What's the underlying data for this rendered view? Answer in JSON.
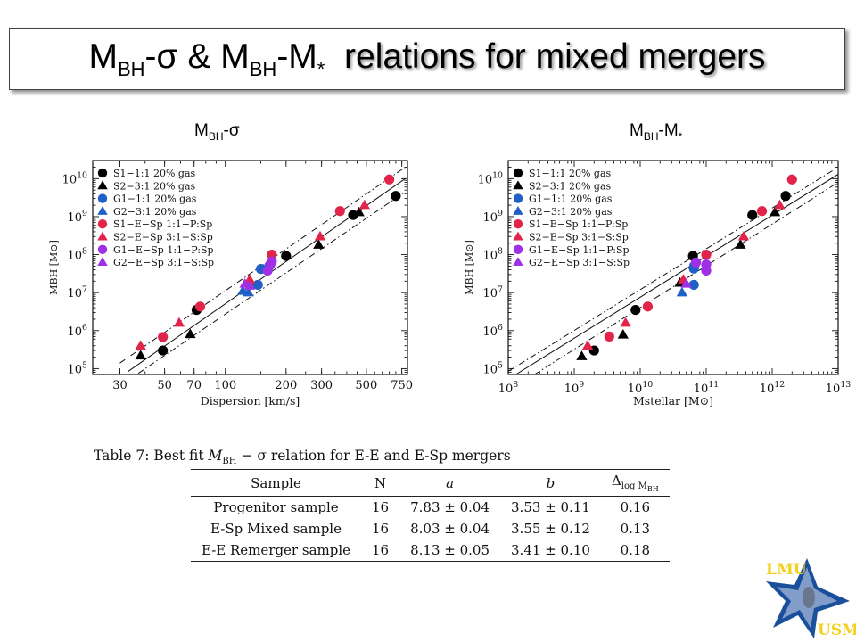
{
  "title": {
    "part1_main": "M",
    "part1_sub": "BH",
    "part2_main": "-σ & M",
    "part2_sub": "BH",
    "part3_main": "-M",
    "part3_sub": "*",
    "part4": "relations for mixed mergers"
  },
  "left_heading": {
    "main": "M",
    "sub": "BH",
    "rest": "-σ"
  },
  "right_heading": {
    "main": "M",
    "sub": "BH",
    "rest": "-M",
    "sub2": "*"
  },
  "legend": [
    {
      "label": "S1−1:1 20% gas",
      "marker": "circle",
      "color": "#000000"
    },
    {
      "label": "S2−3:1 20% gas",
      "marker": "triangle",
      "color": "#000000"
    },
    {
      "label": "G1−1:1 20% gas",
      "marker": "circle",
      "color": "#1f5fc6"
    },
    {
      "label": "G2−3:1 20% gas",
      "marker": "triangle",
      "color": "#1f5fc6"
    },
    {
      "label": "S1−E−Sp 1:1−P:Sp",
      "marker": "circle",
      "color": "#e3244a"
    },
    {
      "label": "S2−E−Sp 3:1−S:Sp",
      "marker": "triangle",
      "color": "#e3244a"
    },
    {
      "label": "G1−E−Sp 1:1−P:Sp",
      "marker": "circle",
      "color": "#a030e6"
    },
    {
      "label": "G2−E−Sp 3:1−S:Sp",
      "marker": "triangle",
      "color": "#a030e6"
    }
  ],
  "chart_data": [
    {
      "type": "scatter",
      "title": "MBH-σ",
      "xlabel": "Dispersion  [km/s]",
      "ylabel": "MBH [M⊙]",
      "xscale": "log",
      "yscale": "log",
      "xlim": [
        22,
        800
      ],
      "ylim": [
        70000,
        30000000000
      ],
      "xticks": [
        30,
        50,
        70,
        100,
        200,
        300,
        500,
        750
      ],
      "xtick_labels": [
        "30",
        "50",
        "70",
        "100",
        "200",
        "300",
        "500",
        "750"
      ],
      "ytick_exponents": [
        5,
        6,
        7,
        8,
        9,
        10
      ],
      "legend_position": "top-left",
      "series": [
        {
          "name": "S1−1:1 20% gas",
          "marker": "circle",
          "color": "#000000",
          "points": [
            [
              49,
              300000
            ],
            [
              72,
              3500000
            ],
            [
              200,
              92000000
            ],
            [
              430,
              1100000000
            ],
            [
              700,
              3500000000
            ]
          ]
        },
        {
          "name": "S2−3:1 20% gas",
          "marker": "triangle",
          "color": "#000000",
          "points": [
            [
              38,
              220000
            ],
            [
              67,
              800000
            ],
            [
              290,
              180000000
            ],
            [
              460,
              1300000000
            ]
          ]
        },
        {
          "name": "G1−1:1 20% gas",
          "marker": "circle",
          "color": "#1f5fc6",
          "points": [
            [
              145,
              16000000
            ],
            [
              150,
              42000000
            ],
            [
              165,
              50000000
            ]
          ]
        },
        {
          "name": "G2−3:1 20% gas",
          "marker": "triangle",
          "color": "#1f5fc6",
          "points": [
            [
              122,
              11000000
            ],
            [
              130,
              10000000
            ]
          ]
        },
        {
          "name": "S1−E−Sp 1:1−P:Sp",
          "marker": "circle",
          "color": "#e3244a",
          "points": [
            [
              49,
              680000
            ],
            [
              75,
              4300000
            ],
            [
              170,
              100000000
            ],
            [
              370,
              1400000000
            ],
            [
              650,
              9500000000
            ]
          ]
        },
        {
          "name": "S2−E−Sp 3:1−S:Sp",
          "marker": "triangle",
          "color": "#e3244a",
          "points": [
            [
              38,
              400000
            ],
            [
              59,
              1600000
            ],
            [
              132,
              22000000
            ],
            [
              295,
              300000000
            ],
            [
              490,
              2000000000
            ]
          ]
        },
        {
          "name": "G1−E−Sp 1:1−P:Sp",
          "marker": "circle",
          "color": "#a030e6",
          "points": [
            [
              162,
              38000000
            ],
            [
              167,
              55000000
            ],
            [
              170,
              66000000
            ]
          ]
        },
        {
          "name": "G2−E−Sp 3:1−S:Sp",
          "marker": "triangle",
          "color": "#a030e6",
          "points": [
            [
              125,
              17000000
            ],
            [
              132,
              15000000
            ]
          ]
        }
      ],
      "fit_lines": [
        {
          "style": "solid",
          "from": [
            33,
            85000
          ],
          "to": [
            780,
            10000000000
          ]
        },
        {
          "style": "dashdot",
          "from": [
            30,
            140000
          ],
          "to": [
            780,
            20000000000
          ]
        },
        {
          "style": "dashdot",
          "from": [
            37,
            75000
          ],
          "to": [
            780,
            4500000000
          ]
        }
      ]
    },
    {
      "type": "scatter",
      "title": "MBH-M*",
      "xlabel": "Mstellar  [M⊙]",
      "ylabel": "MBH [M⊙]",
      "xscale": "log",
      "yscale": "log",
      "xlim": [
        100000000,
        10000000000000
      ],
      "ylim": [
        70000,
        30000000000
      ],
      "xtick_exponents": [
        8,
        9,
        10,
        11,
        12,
        13
      ],
      "ytick_exponents": [
        5,
        6,
        7,
        8,
        9,
        10
      ],
      "legend_position": "top-left",
      "series": [
        {
          "name": "S1−1:1 20% gas",
          "marker": "circle",
          "color": "#000000",
          "points": [
            [
              2000000000,
              300000
            ],
            [
              8500000000,
              3500000
            ],
            [
              63000000000,
              92000000
            ],
            [
              500000000000,
              1100000000
            ],
            [
              1600000000000,
              3500000000
            ]
          ]
        },
        {
          "name": "S2−3:1 20% gas",
          "marker": "triangle",
          "color": "#000000",
          "points": [
            [
              1300000000,
              210000
            ],
            [
              5500000000,
              780000
            ],
            [
              40000000000,
              18000000
            ],
            [
              330000000000,
              180000000
            ],
            [
              1100000000000,
              1300000000
            ]
          ]
        },
        {
          "name": "G1−1:1 20% gas",
          "marker": "circle",
          "color": "#1f5fc6",
          "points": [
            [
              65000000000,
              16000000
            ],
            [
              65000000000,
              43000000
            ],
            [
              66000000000,
              51000000
            ]
          ]
        },
        {
          "name": "G2−3:1 20% gas",
          "marker": "triangle",
          "color": "#1f5fc6",
          "points": [
            [
              43000000000,
              10000000
            ]
          ]
        },
        {
          "name": "S1−E−Sp 1:1−P:Sp",
          "marker": "circle",
          "color": "#e3244a",
          "points": [
            [
              3400000000,
              700000
            ],
            [
              13000000000,
              4300000
            ],
            [
              100000000000,
              100000000
            ],
            [
              700000000000,
              1400000000
            ],
            [
              2000000000000,
              9500000000
            ]
          ]
        },
        {
          "name": "S2−E−Sp 3:1−S:Sp",
          "marker": "triangle",
          "color": "#e3244a",
          "points": [
            [
              1600000000,
              400000
            ],
            [
              6000000000,
              1600000
            ],
            [
              45000000000,
              22000000
            ],
            [
              370000000000,
              300000000
            ],
            [
              1300000000000,
              2000000000
            ]
          ]
        },
        {
          "name": "G1−E−Sp 1:1−P:Sp",
          "marker": "circle",
          "color": "#a030e6",
          "points": [
            [
              100000000000,
              38000000
            ],
            [
              100000000000,
              55000000
            ],
            [
              70000000000,
              62000000
            ]
          ]
        },
        {
          "name": "G2−E−Sp 3:1−S:Sp",
          "marker": "triangle",
          "color": "#a030e6",
          "points": [
            [
              50000000000,
              17000000
            ]
          ]
        }
      ],
      "fit_lines": [
        {
          "style": "solid",
          "from": [
            130000000,
            70000
          ],
          "to": [
            10000000000000,
            13000000000
          ]
        },
        {
          "style": "dashdot",
          "from": [
            100000000,
            85000
          ],
          "to": [
            10000000000000,
            20000000000
          ]
        },
        {
          "style": "dashdot",
          "from": [
            250000000,
            70000
          ],
          "to": [
            10000000000000,
            8000000000
          ]
        }
      ]
    }
  ],
  "table": {
    "caption": "Table 7: Best fit M_BH − σ relation for E-E and E-Sp mergers",
    "caption_pre": "Table 7: Best fit ",
    "caption_var": "M",
    "caption_var_sub": "BH",
    "caption_post": " − σ relation for E-E and E-Sp mergers",
    "headers": [
      "Sample",
      "N",
      "a",
      "b",
      "Δlog M_BH"
    ],
    "h_delta": "Δ",
    "h_delta_sub": "log M",
    "h_delta_subsub": "BH",
    "rows": [
      [
        "Progenitor sample",
        "16",
        "7.83 ± 0.04",
        "3.53 ± 0.11",
        "0.16"
      ],
      [
        "E-Sp Mixed sample",
        "16",
        "8.03 ± 0.04",
        "3.55 ± 0.12",
        "0.13"
      ],
      [
        "E-E Remerger sample",
        "16",
        "8.13 ± 0.05",
        "3.41 ± 0.10",
        "0.18"
      ]
    ]
  },
  "logo": {
    "top_text": "LMU",
    "bottom_text": "USM",
    "colors": {
      "yellow": "#f2d21e",
      "blue": "#1a4f9c"
    }
  }
}
